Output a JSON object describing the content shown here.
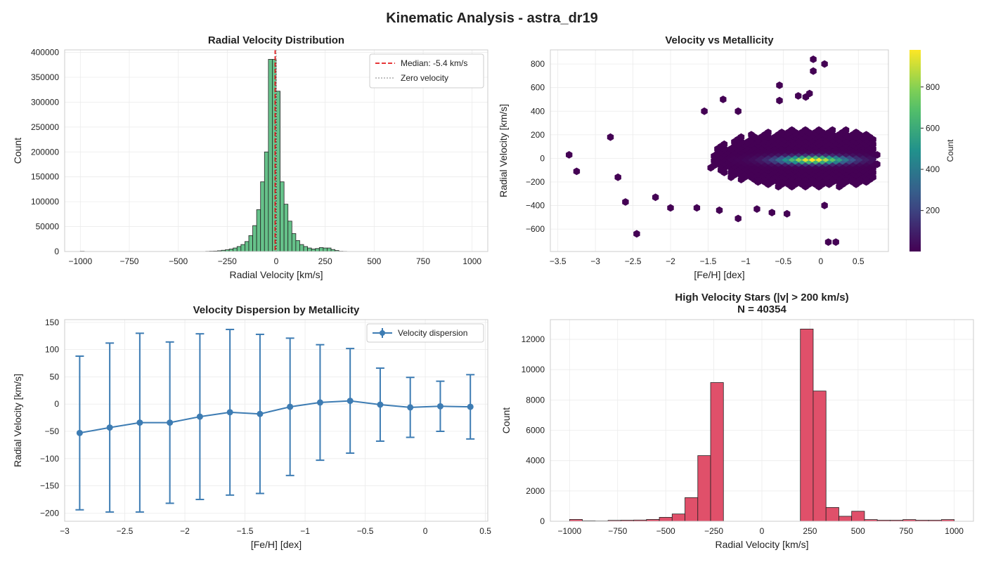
{
  "suptitle": "Kinematic Analysis - astra_dr19",
  "chart_data": [
    {
      "type": "bar",
      "title": "Radial Velocity Distribution",
      "xlabel": "Radial Velocity [km/s]",
      "ylabel": "Count",
      "xlim": [
        -1080,
        1080
      ],
      "ylim": [
        0,
        405000
      ],
      "xticks": [
        -1000,
        -750,
        -500,
        -250,
        0,
        250,
        500,
        750,
        1000
      ],
      "yticks": [
        0,
        50000,
        100000,
        150000,
        200000,
        250000,
        300000,
        350000,
        400000
      ],
      "bar_color": "#66c28a",
      "bin_width": 20,
      "bin_starts": [
        -1000,
        -360,
        -340,
        -320,
        -300,
        -280,
        -260,
        -240,
        -220,
        -200,
        -180,
        -160,
        -140,
        -120,
        -100,
        -80,
        -60,
        -40,
        -20,
        0,
        20,
        40,
        60,
        80,
        100,
        120,
        140,
        160,
        180,
        200,
        220,
        240,
        260,
        280,
        300,
        320,
        340
      ],
      "values": [
        500,
        400,
        700,
        900,
        1500,
        2500,
        3500,
        5000,
        7000,
        10000,
        14000,
        20000,
        32000,
        52000,
        84000,
        140000,
        200000,
        386000,
        386000,
        322000,
        140000,
        95000,
        61000,
        36000,
        22000,
        14000,
        10000,
        7000,
        5000,
        6000,
        8000,
        7000,
        7000,
        4000,
        2000,
        500,
        300
      ],
      "grid": true,
      "legend": {
        "position": "top-right",
        "entries": [
          {
            "label": "Median: -5.4 km/s",
            "style": "dashed",
            "color": "#e31a1c"
          },
          {
            "label": "Zero velocity",
            "style": "dotted",
            "color": "#aaaaaa"
          }
        ]
      },
      "median": -5.4
    },
    {
      "type": "heatmap",
      "subtype": "hexbin",
      "title": "Velocity vs Metallicity",
      "xlabel": "[Fe/H] [dex]",
      "ylabel": "Radial Velocity [km/s]",
      "xlim": [
        -3.6,
        0.9
      ],
      "ylim": [
        -790,
        920
      ],
      "xticks": [
        -3.5,
        -3.0,
        -2.5,
        -2.0,
        -1.5,
        -1.0,
        -0.5,
        0.0,
        0.5
      ],
      "yticks": [
        -600,
        -400,
        -200,
        0,
        200,
        400,
        600,
        800
      ],
      "colorbar": {
        "label": "Count",
        "ticks": [
          200,
          400,
          600,
          800
        ],
        "range": [
          1,
          980
        ],
        "colormap": "viridis"
      },
      "grid": true,
      "density_peak": {
        "feh": -0.1,
        "rv": 0,
        "count": 980
      },
      "core_spread": {
        "feh_sigma": 0.45,
        "rv_sigma": 30
      },
      "envelope": {
        "feh_range": [
          -2.5,
          0.7
        ],
        "rv_range": [
          -340,
          320
        ]
      },
      "outliers": [
        {
          "feh": -3.35,
          "rv": 30
        },
        {
          "feh": -3.25,
          "rv": -110
        },
        {
          "feh": -2.45,
          "rv": -640
        },
        {
          "feh": -2.7,
          "rv": -160
        },
        {
          "feh": -2.6,
          "rv": -370
        },
        {
          "feh": -2.0,
          "rv": -420
        },
        {
          "feh": -1.55,
          "rv": 400
        },
        {
          "feh": -1.3,
          "rv": 500
        },
        {
          "feh": -1.1,
          "rv": 400
        },
        {
          "feh": -0.55,
          "rv": 620
        },
        {
          "feh": -0.55,
          "rv": 490
        },
        {
          "feh": -0.3,
          "rv": 530
        },
        {
          "feh": -0.2,
          "rv": 520
        },
        {
          "feh": -0.15,
          "rv": 550
        },
        {
          "feh": -0.1,
          "rv": 740
        },
        {
          "feh": -0.1,
          "rv": 840
        },
        {
          "feh": 0.05,
          "rv": 800
        },
        {
          "feh": -1.1,
          "rv": -510
        },
        {
          "feh": -0.85,
          "rv": -430
        },
        {
          "feh": -0.65,
          "rv": -460
        },
        {
          "feh": -0.45,
          "rv": -470
        },
        {
          "feh": 0.1,
          "rv": -710
        },
        {
          "feh": 0.2,
          "rv": -710
        },
        {
          "feh": 0.75,
          "rv": 30
        },
        {
          "feh": 0.75,
          "rv": -50
        },
        {
          "feh": 0.05,
          "rv": -400
        },
        {
          "feh": -1.65,
          "rv": -420
        },
        {
          "feh": -1.35,
          "rv": -440
        },
        {
          "feh": -2.2,
          "rv": -330
        },
        {
          "feh": -2.8,
          "rv": 180
        }
      ]
    },
    {
      "type": "line",
      "subtype": "errorbar",
      "title": "Velocity Dispersion by Metallicity",
      "xlabel": "[Fe/H] [dex]",
      "ylabel": "Radial Velocity [km/s]",
      "xlim": [
        -3.0,
        0.52
      ],
      "ylim": [
        -215,
        155
      ],
      "xticks": [
        -3.0,
        -2.5,
        -2.0,
        -1.5,
        -1.0,
        -0.5,
        0.0,
        0.5
      ],
      "yticks": [
        -200,
        -150,
        -100,
        -50,
        0,
        50,
        100,
        150
      ],
      "grid": true,
      "series": [
        {
          "name": "Velocity dispersion",
          "color": "#3d7cb3",
          "x": [
            -2.875,
            -2.625,
            -2.375,
            -2.125,
            -1.875,
            -1.625,
            -1.375,
            -1.125,
            -0.875,
            -0.625,
            -0.375,
            -0.125,
            0.125,
            0.375
          ],
          "y": [
            -53,
            -43,
            -34,
            -34,
            -23,
            -15,
            -18,
            -5,
            3,
            6,
            -1,
            -6,
            -4,
            -5
          ],
          "err": [
            141,
            155,
            164,
            148,
            152,
            152,
            146,
            126,
            106,
            96,
            67,
            55,
            46,
            59
          ]
        }
      ],
      "legend": {
        "position": "top-right"
      }
    },
    {
      "type": "bar",
      "title": "High Velocity Stars (|v| > 200 km/s)",
      "subtitle": "N = 40354",
      "xlabel": "Radial Velocity [km/s]",
      "ylabel": "Count",
      "xlim": [
        -1100,
        1100
      ],
      "ylim": [
        0,
        13300
      ],
      "xticks": [
        -1000,
        -750,
        -500,
        -250,
        0,
        250,
        500,
        750,
        1000
      ],
      "yticks": [
        0,
        2000,
        4000,
        6000,
        8000,
        10000,
        12000
      ],
      "bar_color": "#e0506a",
      "bin_width": 66.67,
      "bin_starts": [
        -1000,
        -933.33,
        -866.67,
        -800,
        -733.33,
        -666.67,
        -600,
        -533.33,
        -466.67,
        -400,
        -333.33,
        -266.67,
        -200,
        -133.33,
        -66.67,
        0,
        66.67,
        133.33,
        200,
        266.67,
        333.33,
        400,
        466.67,
        533.33,
        600,
        666.67,
        733.33,
        800,
        866.67,
        933.33
      ],
      "values": [
        120,
        30,
        20,
        60,
        70,
        80,
        120,
        260,
        480,
        1560,
        4330,
        9150,
        0,
        0,
        0,
        0,
        0,
        0,
        12680,
        8590,
        910,
        330,
        660,
        110,
        70,
        70,
        110,
        70,
        70,
        110
      ],
      "grid": true
    }
  ]
}
